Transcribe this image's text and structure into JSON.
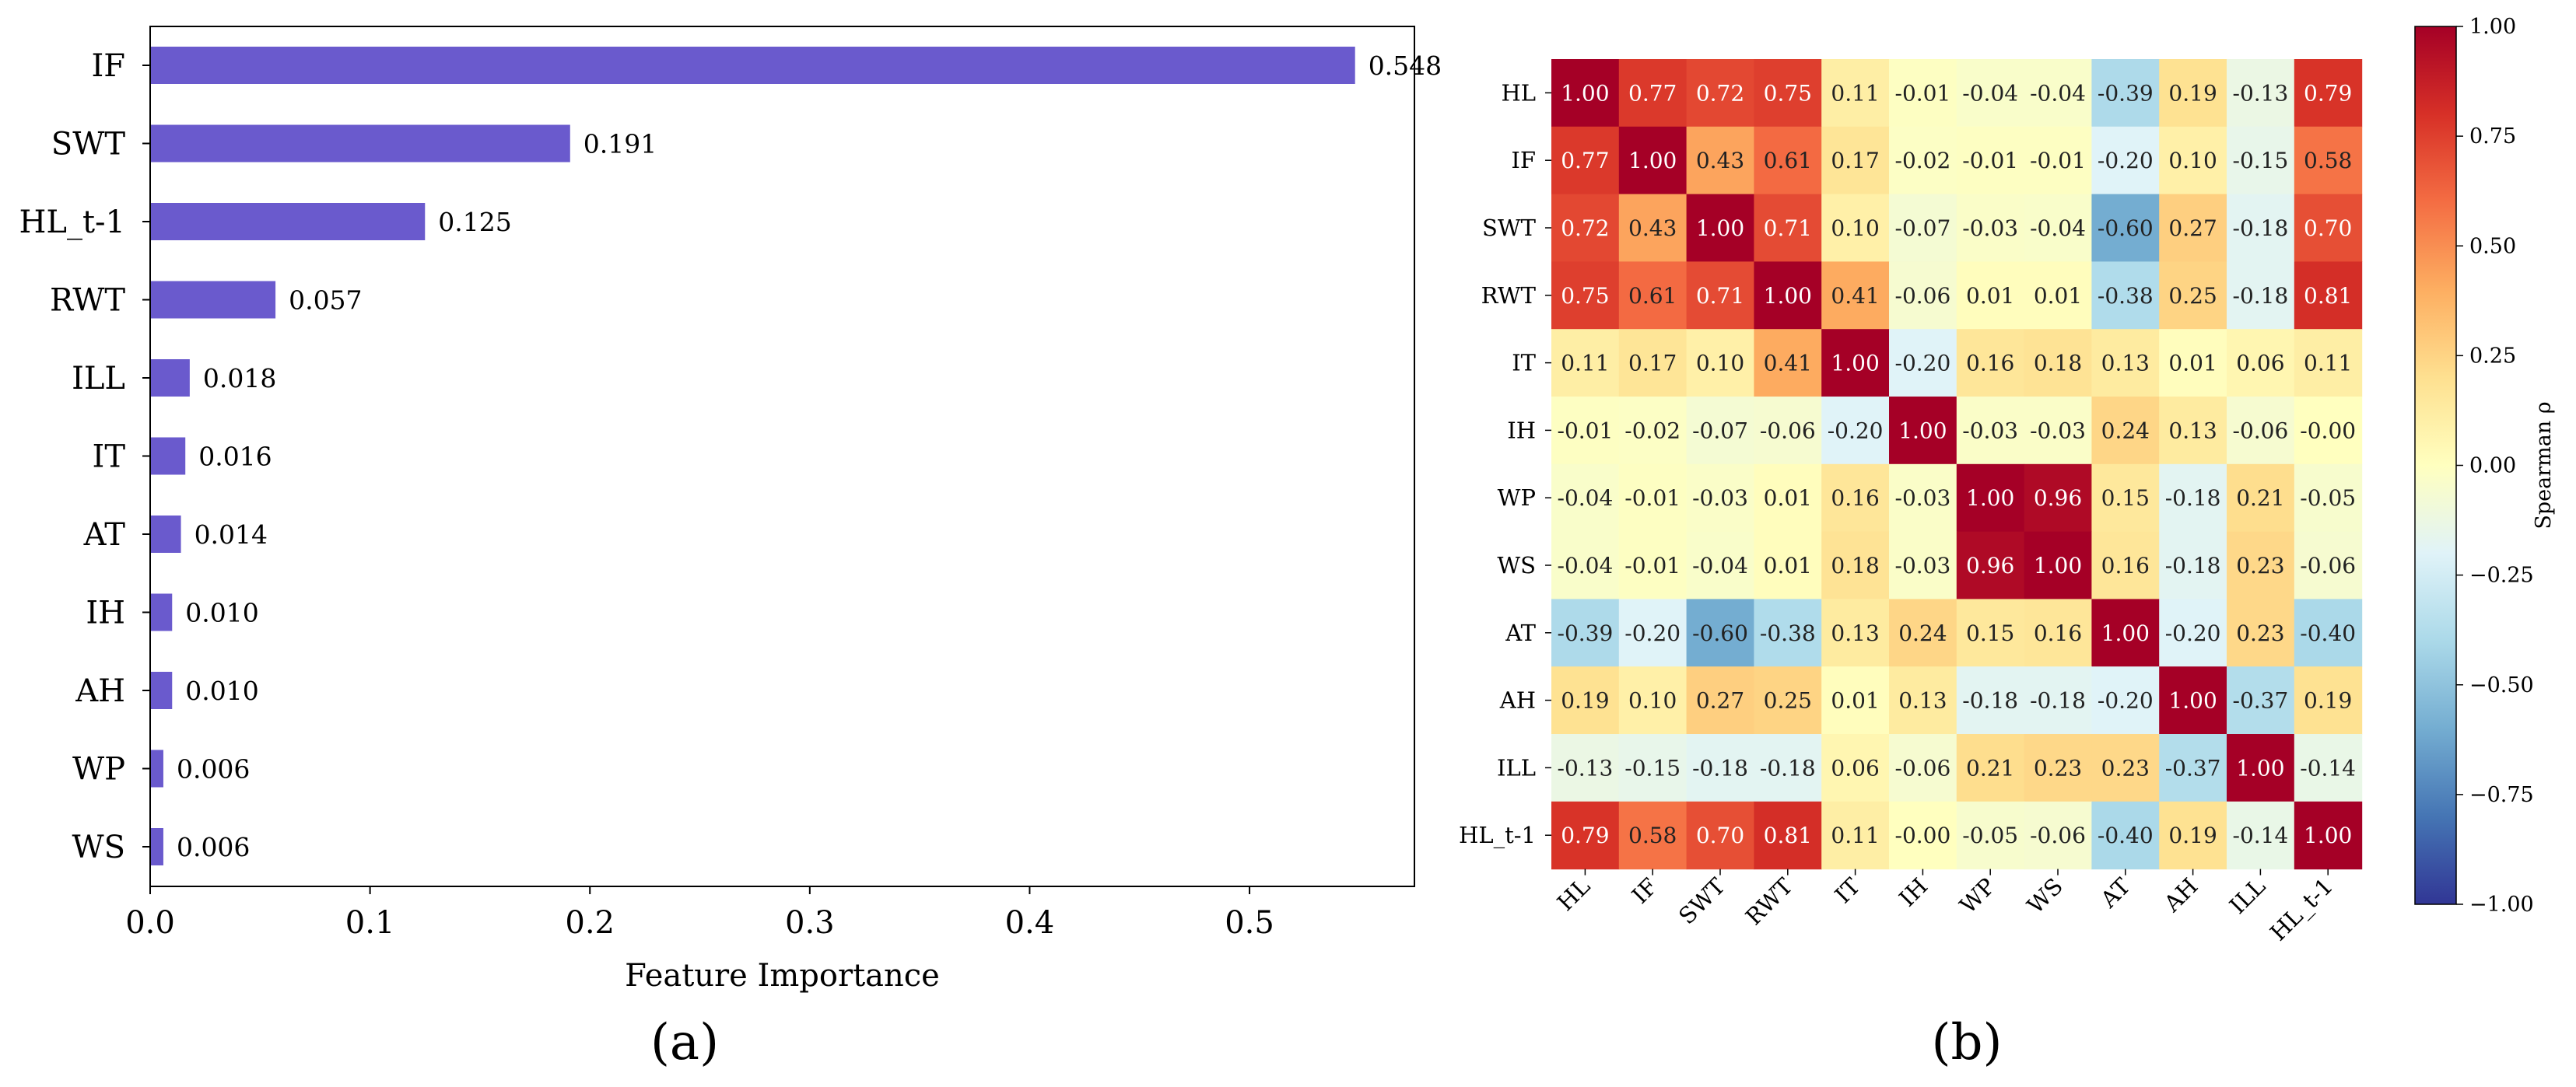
{
  "panels": {
    "left": "(a)",
    "right": "(b)"
  },
  "chart_data": [
    {
      "type": "bar",
      "orientation": "horizontal",
      "categories": [
        "IF",
        "SWT",
        "HL_t-1",
        "RWT",
        "ILL",
        "IT",
        "AT",
        "IH",
        "AH",
        "WP",
        "WS"
      ],
      "values": [
        0.548,
        0.191,
        0.125,
        0.057,
        0.018,
        0.016,
        0.014,
        0.01,
        0.01,
        0.006,
        0.006
      ],
      "value_labels": [
        "0.548",
        "0.191",
        "0.125",
        "0.057",
        "0.018",
        "0.016",
        "0.014",
        "0.010",
        "0.010",
        "0.006",
        "0.006"
      ],
      "xlabel": "Feature Importance",
      "xticks": [
        "0.0",
        "0.1",
        "0.2",
        "0.3",
        "0.4",
        "0.5"
      ],
      "xtick_values": [
        0,
        0.1,
        0.2,
        0.3,
        0.4,
        0.5
      ],
      "xlim": [
        0,
        0.575
      ],
      "bar_color": "#6a5acd",
      "grid": false
    },
    {
      "type": "heatmap",
      "labels": [
        "HL",
        "IF",
        "SWT",
        "RWT",
        "IT",
        "IH",
        "WP",
        "WS",
        "AT",
        "AH",
        "ILL",
        "HL_t-1"
      ],
      "matrix": [
        [
          1.0,
          0.77,
          0.72,
          0.75,
          0.11,
          -0.01,
          -0.04,
          -0.04,
          -0.39,
          0.19,
          -0.13,
          0.79
        ],
        [
          0.77,
          1.0,
          0.43,
          0.61,
          0.17,
          -0.02,
          -0.01,
          -0.01,
          -0.2,
          0.1,
          -0.15,
          0.58
        ],
        [
          0.72,
          0.43,
          1.0,
          0.71,
          0.1,
          -0.07,
          -0.03,
          -0.04,
          -0.6,
          0.27,
          -0.18,
          0.7
        ],
        [
          0.75,
          0.61,
          0.71,
          1.0,
          0.41,
          -0.06,
          0.01,
          0.01,
          -0.38,
          0.25,
          -0.18,
          0.81
        ],
        [
          0.11,
          0.17,
          0.1,
          0.41,
          1.0,
          -0.2,
          0.16,
          0.18,
          0.13,
          0.01,
          0.06,
          0.11
        ],
        [
          -0.01,
          -0.02,
          -0.07,
          -0.06,
          -0.2,
          1.0,
          -0.03,
          -0.03,
          0.24,
          0.13,
          -0.06,
          -0.0
        ],
        [
          -0.04,
          -0.01,
          -0.03,
          0.01,
          0.16,
          -0.03,
          1.0,
          0.96,
          0.15,
          -0.18,
          0.21,
          -0.05
        ],
        [
          -0.04,
          -0.01,
          -0.04,
          0.01,
          0.18,
          -0.03,
          0.96,
          1.0,
          0.16,
          -0.18,
          0.23,
          -0.06
        ],
        [
          -0.39,
          -0.2,
          -0.6,
          -0.38,
          0.13,
          0.24,
          0.15,
          0.16,
          1.0,
          -0.2,
          0.23,
          -0.4
        ],
        [
          0.19,
          0.1,
          0.27,
          0.25,
          0.01,
          0.13,
          -0.18,
          -0.18,
          -0.2,
          1.0,
          -0.37,
          0.19
        ],
        [
          -0.13,
          -0.15,
          -0.18,
          -0.18,
          0.06,
          -0.06,
          0.21,
          0.23,
          0.23,
          -0.37,
          1.0,
          -0.14
        ],
        [
          0.79,
          0.58,
          0.7,
          0.81,
          0.11,
          -0.0,
          -0.05,
          -0.06,
          -0.4,
          0.19,
          -0.14,
          1.0
        ]
      ],
      "cell_labels": [
        [
          "1.00",
          "0.77",
          "0.72",
          "0.75",
          "0.11",
          "-0.01",
          "-0.04",
          "-0.04",
          "-0.39",
          "0.19",
          "-0.13",
          "0.79"
        ],
        [
          "0.77",
          "1.00",
          "0.43",
          "0.61",
          "0.17",
          "-0.02",
          "-0.01",
          "-0.01",
          "-0.20",
          "0.10",
          "-0.15",
          "0.58"
        ],
        [
          "0.72",
          "0.43",
          "1.00",
          "0.71",
          "0.10",
          "-0.07",
          "-0.03",
          "-0.04",
          "-0.60",
          "0.27",
          "-0.18",
          "0.70"
        ],
        [
          "0.75",
          "0.61",
          "0.71",
          "1.00",
          "0.41",
          "-0.06",
          "0.01",
          "0.01",
          "-0.38",
          "0.25",
          "-0.18",
          "0.81"
        ],
        [
          "0.11",
          "0.17",
          "0.10",
          "0.41",
          "1.00",
          "-0.20",
          "0.16",
          "0.18",
          "0.13",
          "0.01",
          "0.06",
          "0.11"
        ],
        [
          "-0.01",
          "-0.02",
          "-0.07",
          "-0.06",
          "-0.20",
          "1.00",
          "-0.03",
          "-0.03",
          "0.24",
          "0.13",
          "-0.06",
          "-0.00"
        ],
        [
          "-0.04",
          "-0.01",
          "-0.03",
          "0.01",
          "0.16",
          "-0.03",
          "1.00",
          "0.96",
          "0.15",
          "-0.18",
          "0.21",
          "-0.05"
        ],
        [
          "-0.04",
          "-0.01",
          "-0.04",
          "0.01",
          "0.18",
          "-0.03",
          "0.96",
          "1.00",
          "0.16",
          "-0.18",
          "0.23",
          "-0.06"
        ],
        [
          "-0.39",
          "-0.20",
          "-0.60",
          "-0.38",
          "0.13",
          "0.24",
          "0.15",
          "0.16",
          "1.00",
          "-0.20",
          "0.23",
          "-0.40"
        ],
        [
          "0.19",
          "0.10",
          "0.27",
          "0.25",
          "0.01",
          "0.13",
          "-0.18",
          "-0.18",
          "-0.20",
          "1.00",
          "-0.37",
          "0.19"
        ],
        [
          "-0.13",
          "-0.15",
          "-0.18",
          "-0.18",
          "0.06",
          "-0.06",
          "0.21",
          "0.23",
          "0.23",
          "-0.37",
          "1.00",
          "-0.14"
        ],
        [
          "0.79",
          "0.58",
          "0.70",
          "0.81",
          "0.11",
          "-0.00",
          "-0.05",
          "-0.06",
          "-0.40",
          "0.19",
          "-0.14",
          "1.00"
        ]
      ],
      "colormap": "RdYlBu_r",
      "colormap_stops": [
        "#313695",
        "#4575b4",
        "#74add1",
        "#abd9e9",
        "#e0f3f8",
        "#ffffbf",
        "#fee090",
        "#fdae61",
        "#f46d43",
        "#d73027",
        "#a50026"
      ],
      "vmin": -1.0,
      "vmax": 1.0,
      "colorbar": {
        "label": "Spearman ρ",
        "ticks": [
          "1.00",
          "0.75",
          "0.50",
          "0.25",
          "0.00",
          "−0.25",
          "−0.50",
          "−0.75",
          "−1.00"
        ],
        "tick_values": [
          1.0,
          0.75,
          0.5,
          0.25,
          0.0,
          -0.25,
          -0.5,
          -0.75,
          -1.0
        ]
      }
    }
  ]
}
